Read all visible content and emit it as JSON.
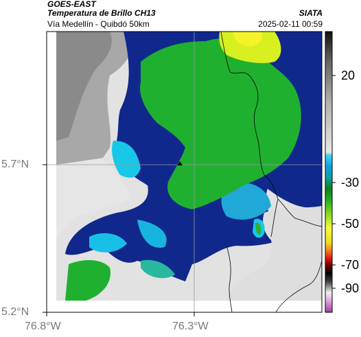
{
  "header": {
    "satellite": "GOES-EAST",
    "product": "Temperatura de Brillo CH13",
    "region": "Vía Medellín - Quibdó 50km",
    "source": "SIATA",
    "datetime": "2025-02-11 00:59"
  },
  "axes": {
    "y_ticks": [
      "5.7°N",
      "5.2°N"
    ],
    "x_ticks": [
      "76.8°W",
      "76.3°W"
    ]
  },
  "colorbar": {
    "ticks": [
      "20",
      "-30",
      "-50",
      "-70",
      "-90"
    ],
    "range": [
      -95,
      35
    ]
  },
  "colors": {
    "cold_magenta": "#c080c0",
    "deep_blue": "#082890",
    "cyan": "#18c8e8",
    "green": "#28b428",
    "yellow": "#f0f020",
    "warm_gray": "#d8d8d8",
    "border_line": "#000000"
  }
}
